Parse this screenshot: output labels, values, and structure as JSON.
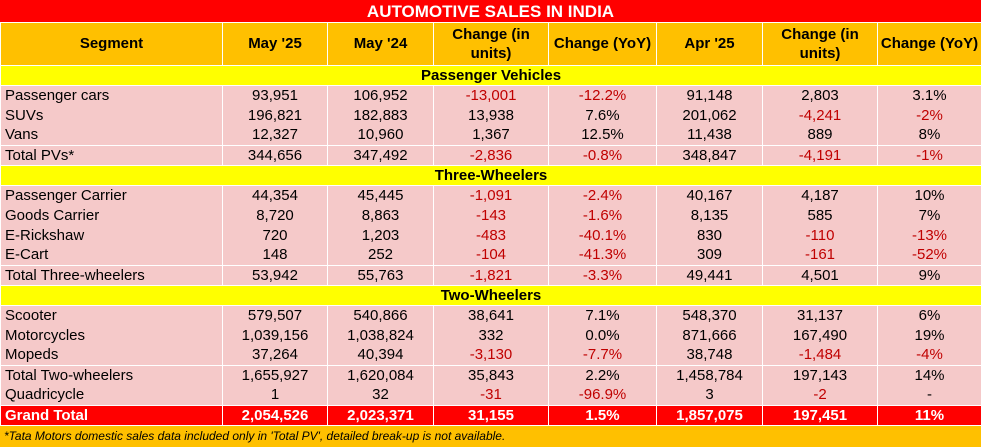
{
  "title": "AUTOMOTIVE SALES IN INDIA",
  "headers": [
    "Segment",
    "May '25",
    "May '24",
    "Change (in units)",
    "Change (YoY)",
    "Apr '25",
    "Change (in units)",
    "Change (YoY)"
  ],
  "sections": [
    {
      "name": "Passenger Vehicles",
      "rows": [
        [
          "Passenger cars",
          "93,951",
          "106,952",
          "-13,001",
          "-12.2%",
          "91,148",
          "2,803",
          "3.1%"
        ],
        [
          "SUVs",
          "196,821",
          "182,883",
          "13,938",
          "7.6%",
          "201,062",
          "-4,241",
          "-2%"
        ],
        [
          "Vans",
          "12,327",
          "10,960",
          "1,367",
          "12.5%",
          "11,438",
          "889",
          "8%"
        ],
        [
          "Total PVs*",
          "344,656",
          "347,492",
          "-2,836",
          "-0.8%",
          "348,847",
          "-4,191",
          "-1%"
        ]
      ]
    },
    {
      "name": "Three-Wheelers",
      "rows": [
        [
          "Passenger Carrier",
          "44,354",
          "45,445",
          "-1,091",
          "-2.4%",
          "40,167",
          "4,187",
          "10%"
        ],
        [
          "Goods Carrier",
          "8,720",
          "8,863",
          "-143",
          "-1.6%",
          "8,135",
          "585",
          "7%"
        ],
        [
          "E-Rickshaw",
          "720",
          "1,203",
          "-483",
          "-40.1%",
          "830",
          "-110",
          "-13%"
        ],
        [
          "E-Cart",
          "148",
          "252",
          "-104",
          "-41.3%",
          "309",
          "-161",
          "-52%"
        ],
        [
          "Total Three-wheelers",
          "53,942",
          "55,763",
          "-1,821",
          "-3.3%",
          "49,441",
          "4,501",
          "9%"
        ]
      ]
    },
    {
      "name": "Two-Wheelers",
      "rows": [
        [
          "Scooter",
          "579,507",
          "540,866",
          "38,641",
          "7.1%",
          "548,370",
          "31,137",
          "6%"
        ],
        [
          "Motorcycles",
          "1,039,156",
          "1,038,824",
          "332",
          "0.0%",
          "871,666",
          "167,490",
          "19%"
        ],
        [
          "Mopeds",
          "37,264",
          "40,394",
          "-3,130",
          "-7.7%",
          "38,748",
          "-1,484",
          "-4%"
        ],
        [
          "Total Two-wheelers",
          "1,655,927",
          "1,620,084",
          "35,843",
          "2.2%",
          "1,458,784",
          "197,143",
          "14%"
        ],
        [
          "Quadricycle",
          "1",
          "32",
          "-31",
          "-96.9%",
          "3",
          "-2",
          "-"
        ]
      ]
    }
  ],
  "grand_total": [
    "Grand Total",
    "2,054,526",
    "2,023,371",
    "31,155",
    "1.5%",
    "1,857,075",
    "197,451",
    "11%"
  ],
  "footnote": "*Tata Motors domestic sales data included only in 'Total PV', detailed break-up is not available.",
  "colors": {
    "title_bg": "#ff0000",
    "header_bg": "#ffc000",
    "section_bg": "#ffff00",
    "row_bg": "#f5c9c9",
    "negative_text": "#c00000"
  }
}
